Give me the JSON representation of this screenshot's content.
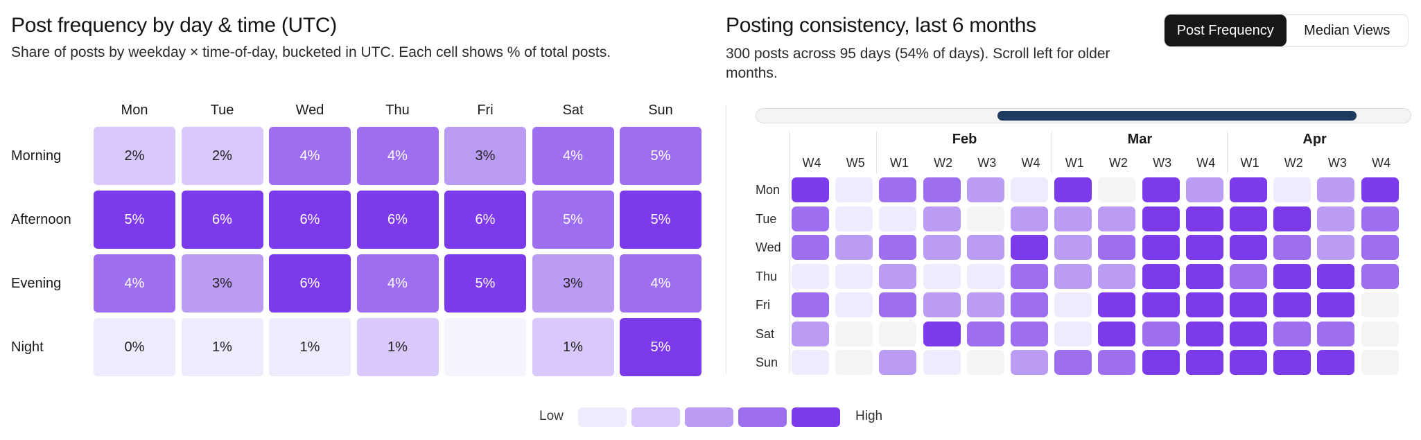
{
  "left": {
    "title": "Post frequency by day & time (UTC)",
    "subtitle": "Share of posts by weekday × time-of-day, bucketed in UTC. Each cell shows % of total posts.",
    "days": [
      "Mon",
      "Tue",
      "Wed",
      "Thu",
      "Fri",
      "Sat",
      "Sun"
    ],
    "periods": [
      "Morning",
      "Afternoon",
      "Evening",
      "Night"
    ],
    "cells": [
      [
        {
          "label": "2%",
          "level": 1
        },
        {
          "label": "2%",
          "level": 1
        },
        {
          "label": "4%",
          "level": 3
        },
        {
          "label": "4%",
          "level": 3
        },
        {
          "label": "3%",
          "level": 2
        },
        {
          "label": "4%",
          "level": 3
        },
        {
          "label": "5%",
          "level": 3
        }
      ],
      [
        {
          "label": "5%",
          "level": 4
        },
        {
          "label": "6%",
          "level": 4
        },
        {
          "label": "6%",
          "level": 4
        },
        {
          "label": "6%",
          "level": 4
        },
        {
          "label": "6%",
          "level": 4
        },
        {
          "label": "5%",
          "level": 3
        },
        {
          "label": "5%",
          "level": 4
        }
      ],
      [
        {
          "label": "4%",
          "level": 3
        },
        {
          "label": "3%",
          "level": 2
        },
        {
          "label": "6%",
          "level": 4
        },
        {
          "label": "4%",
          "level": 3
        },
        {
          "label": "5%",
          "level": 4
        },
        {
          "label": "3%",
          "level": 2
        },
        {
          "label": "4%",
          "level": 3
        }
      ],
      [
        {
          "label": "0%",
          "level": 0
        },
        {
          "label": "1%",
          "level": 0
        },
        {
          "label": "1%",
          "level": 0
        },
        {
          "label": "1%",
          "level": 1
        },
        {
          "label": "",
          "level": -1
        },
        {
          "label": "1%",
          "level": 1
        },
        {
          "label": "5%",
          "level": 4
        }
      ]
    ]
  },
  "right": {
    "title": "Posting consistency, last 6 months",
    "subtitle": "300 posts across 95 days (54% of days). Scroll left for older months.",
    "toggle": [
      {
        "label": "Post Frequency",
        "active": true
      },
      {
        "label": "Median Views",
        "active": false
      }
    ],
    "months": [
      {
        "label": "Feb",
        "start": 2,
        "end": 6
      },
      {
        "label": "Mar",
        "start": 6,
        "end": 10
      },
      {
        "label": "Apr",
        "start": 10,
        "end": 14
      }
    ],
    "weeks": [
      "W4",
      "W5",
      "W1",
      "W2",
      "W3",
      "W4",
      "W1",
      "W2",
      "W3",
      "W4",
      "W1",
      "W2",
      "W3",
      "W4"
    ],
    "days": [
      "Mon",
      "Tue",
      "Wed",
      "Thu",
      "Fri",
      "Sat",
      "Sun"
    ],
    "partial_column": [
      -1,
      0,
      3,
      3,
      3,
      2,
      2
    ],
    "grid": [
      [
        4,
        0,
        3,
        3,
        2,
        0,
        4,
        -1,
        4,
        2,
        4,
        0,
        2,
        4
      ],
      [
        3,
        0,
        0,
        2,
        -1,
        2,
        2,
        2,
        4,
        4,
        4,
        4,
        2,
        3
      ],
      [
        3,
        2,
        3,
        2,
        2,
        4,
        2,
        3,
        4,
        4,
        4,
        3,
        2,
        3
      ],
      [
        0,
        0,
        2,
        0,
        0,
        3,
        2,
        2,
        4,
        4,
        3,
        4,
        4,
        3
      ],
      [
        3,
        0,
        3,
        2,
        2,
        3,
        0,
        4,
        4,
        4,
        4,
        4,
        4,
        -1
      ],
      [
        2,
        -1,
        -1,
        4,
        3,
        3,
        0,
        4,
        3,
        4,
        4,
        3,
        3,
        -1
      ],
      [
        0,
        -1,
        2,
        0,
        -1,
        2,
        3,
        3,
        4,
        4,
        4,
        4,
        4,
        -1
      ]
    ]
  },
  "legend": {
    "low": "Low",
    "high": "High"
  },
  "colors": {
    "empty": "#f4f4f4",
    "scale": [
      "#efeafd",
      "#d9c8fb",
      "#bb9cf5",
      "#9d6ef0",
      "#7c3aea"
    ],
    "text_dark": "#222222",
    "text_light": "#ffffff",
    "scroll_thumb": "#1f3a5f"
  }
}
